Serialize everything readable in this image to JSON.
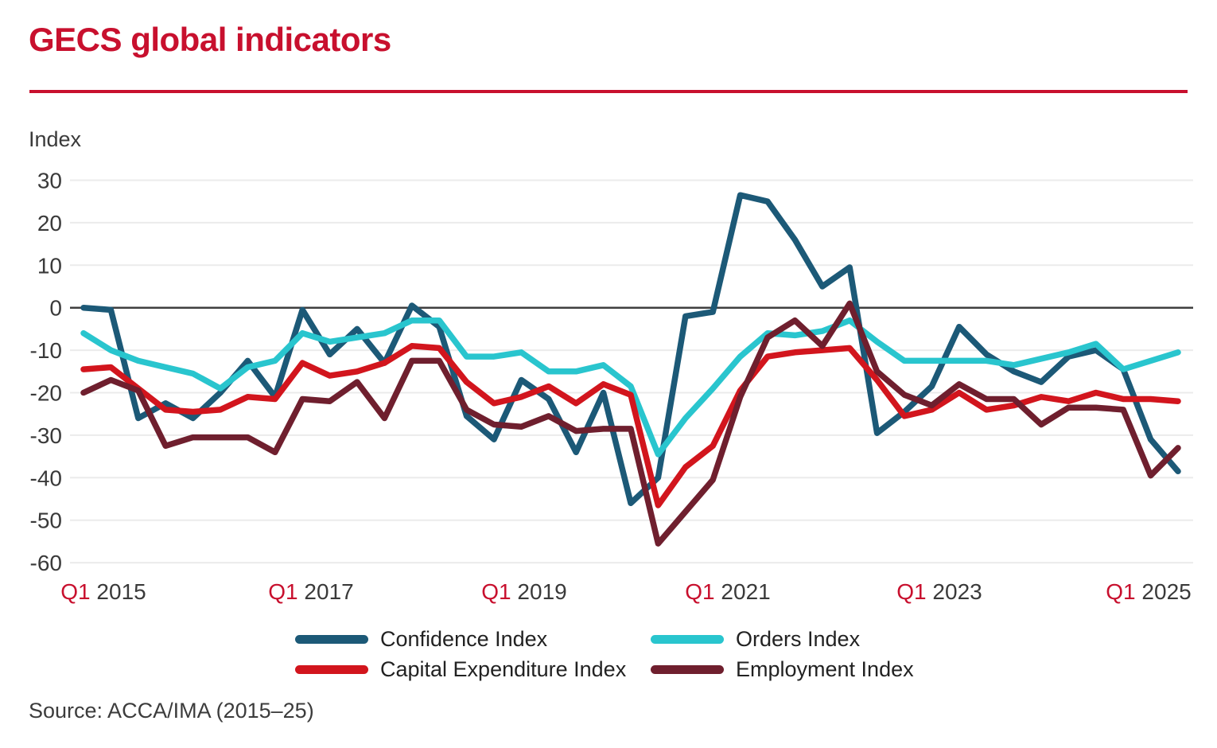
{
  "title": "GECS global indicators",
  "axis": {
    "y_label": "Index",
    "y_ticks": [
      30,
      20,
      10,
      0,
      -10,
      -20,
      -30,
      -40,
      -50,
      -60
    ],
    "x_tick_labels": [
      {
        "quarter": "Q1",
        "year": "2015"
      },
      {
        "quarter": "Q1",
        "year": "2017"
      },
      {
        "quarter": "Q1",
        "year": "2019"
      },
      {
        "quarter": "Q1",
        "year": "2021"
      },
      {
        "quarter": "Q1",
        "year": "2023"
      },
      {
        "quarter": "Q1",
        "year": "2025"
      }
    ]
  },
  "legend": {
    "items": [
      {
        "label": "Confidence Index",
        "color": "#1c5977"
      },
      {
        "label": "Orders Index",
        "color": "#29c5ce"
      },
      {
        "label": "Capital Expenditure Index",
        "color": "#d2151d"
      },
      {
        "label": "Employment Index",
        "color": "#6f1f2e"
      }
    ]
  },
  "source": "Source: ACCA/IMA (2015–25)",
  "colors": {
    "accent_red": "#c8102e",
    "axis_text": "#3a3a3a",
    "gridline": "#ebebeb",
    "zero_line": "#3f3f3f"
  },
  "chart_data": {
    "type": "line",
    "title": "GECS global indicators",
    "ylabel": "Index",
    "ylim": [
      -60,
      30
    ],
    "grid": "horizontal",
    "legend_position": "bottom",
    "x_major_ticks": [
      "Q1 2015",
      "Q1 2017",
      "Q1 2019",
      "Q1 2021",
      "Q1 2023",
      "Q1 2025"
    ],
    "x": [
      "Q1 2015",
      "Q2 2015",
      "Q3 2015",
      "Q4 2015",
      "Q1 2016",
      "Q2 2016",
      "Q3 2016",
      "Q4 2016",
      "Q1 2017",
      "Q2 2017",
      "Q3 2017",
      "Q4 2017",
      "Q1 2018",
      "Q2 2018",
      "Q3 2018",
      "Q4 2018",
      "Q1 2019",
      "Q2 2019",
      "Q3 2019",
      "Q4 2019",
      "Q1 2020",
      "Q2 2020",
      "Q3 2020",
      "Q4 2020",
      "Q1 2021",
      "Q2 2021",
      "Q3 2021",
      "Q4 2021",
      "Q1 2022",
      "Q2 2022",
      "Q3 2022",
      "Q4 2022",
      "Q1 2023",
      "Q2 2023",
      "Q3 2023",
      "Q4 2023",
      "Q1 2024",
      "Q2 2024",
      "Q3 2024",
      "Q4 2024",
      "Q1 2025"
    ],
    "series": [
      {
        "name": "Confidence Index",
        "color": "#1c5977",
        "values": [
          0,
          -0.5,
          -26,
          -22.5,
          -26,
          -20,
          -12.5,
          -21,
          -0.5,
          -11,
          -5,
          -13,
          0.5,
          -4.5,
          -25.5,
          -31,
          -17,
          -21.5,
          -34,
          -20,
          -46,
          -40,
          -2,
          -1,
          26.5,
          25,
          16,
          5,
          9.5,
          -29.5,
          -24.5,
          -18.5,
          -4.5,
          -11,
          -15,
          -17.5,
          -11.5,
          -10,
          -14.5,
          -31,
          -38.5
        ]
      },
      {
        "name": "Orders Index",
        "color": "#29c5ce",
        "values": [
          -6,
          -10,
          -12.5,
          -14,
          -15.5,
          -19,
          -14,
          -12.5,
          -6,
          -8,
          -7,
          -6,
          -3,
          -3,
          -11.5,
          -11.5,
          -10.5,
          -15,
          -15,
          -13.5,
          -18.5,
          -34.5,
          -26,
          -19,
          -11.5,
          -6,
          -6.5,
          -5.5,
          -3,
          -8,
          -12.5,
          -12.5,
          -12.5,
          -12.5,
          -13.5,
          -12,
          -10.5,
          -8.5,
          -14.5,
          -12.5,
          -10.5
        ]
      },
      {
        "name": "Capital Expenditure Index",
        "color": "#d2151d",
        "values": [
          -14.5,
          -14,
          -19,
          -24,
          -24.5,
          -24,
          -21,
          -21.5,
          -13,
          -16,
          -15,
          -13,
          -9,
          -9.5,
          -17.5,
          -22.5,
          -21,
          -18.5,
          -22.5,
          -18,
          -20.5,
          -46.5,
          -37.5,
          -32.5,
          -19.5,
          -11.5,
          -10.5,
          -10,
          -9.5,
          -17,
          -25.5,
          -24,
          -20,
          -24,
          -23,
          -21,
          -22,
          -20,
          -21.5,
          -21.5,
          -22
        ]
      },
      {
        "name": "Employment Index",
        "color": "#6f1f2e",
        "values": [
          -20,
          -17,
          -19.5,
          -32.5,
          -30.5,
          -30.5,
          -30.5,
          -34,
          -21.5,
          -22,
          -17.5,
          -26,
          -12.5,
          -12.5,
          -24,
          -27.5,
          -28,
          -25.5,
          -29,
          -28.5,
          -28.5,
          -55.5,
          -48,
          -40.5,
          -21,
          -7,
          -3,
          -9,
          1,
          -15,
          -20.5,
          -23,
          -18,
          -21.5,
          -21.5,
          -27.5,
          -23.5,
          -23.5,
          -24,
          -39.5,
          -33
        ]
      }
    ]
  }
}
